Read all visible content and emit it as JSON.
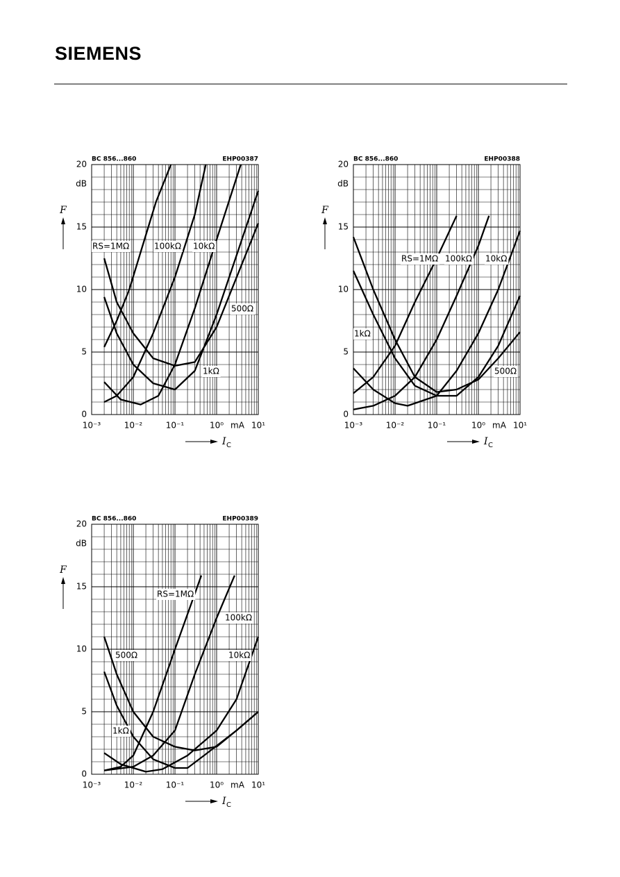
{
  "header": {
    "logo": "SIEMENS"
  },
  "chart_data": [
    {
      "type": "line",
      "code": "BC 856...860",
      "figure_id": "EHP00387",
      "ylabel": "F",
      "y_unit": "dB",
      "xlabel": "I",
      "xlabel_sub": "C",
      "x_unit": "mA",
      "xscale": "log",
      "grid": true,
      "xlim": [
        0.001,
        10
      ],
      "ylim": [
        0,
        20
      ],
      "xticks": [
        {
          "value": 0.001,
          "label": "10⁻³"
        },
        {
          "value": 0.01,
          "label": "10⁻²"
        },
        {
          "value": 0.1,
          "label": "10⁻¹"
        },
        {
          "value": 1,
          "label": "10⁰"
        },
        {
          "value": 10,
          "label": "10¹"
        }
      ],
      "yticks": [
        0,
        5,
        10,
        15,
        20
      ],
      "series": [
        {
          "name": "RS=1MΩ",
          "color": "#000000",
          "x": [
            0.002,
            0.004,
            0.008,
            0.015,
            0.035,
            0.08
          ],
          "values": [
            5.4,
            7.5,
            10,
            13,
            17,
            20
          ]
        },
        {
          "name": "100kΩ",
          "color": "#000000",
          "x": [
            0.002,
            0.004,
            0.01,
            0.03,
            0.1,
            0.3,
            0.55
          ],
          "values": [
            1.0,
            1.5,
            3,
            6.5,
            11,
            16,
            20
          ]
        },
        {
          "name": "10kΩ",
          "color": "#000000",
          "x": [
            0.002,
            0.005,
            0.015,
            0.04,
            0.1,
            0.3,
            1,
            3.8
          ],
          "values": [
            2.6,
            1.2,
            0.8,
            1.5,
            4,
            8.5,
            14,
            20
          ]
        },
        {
          "name": "500Ω",
          "color": "#000000",
          "x": [
            0.002,
            0.004,
            0.01,
            0.03,
            0.1,
            0.3,
            1,
            10
          ],
          "values": [
            9.4,
            6.5,
            4,
            2.5,
            2,
            3.5,
            8,
            17.9
          ]
        },
        {
          "name": "1kΩ",
          "color": "#000000",
          "x": [
            0.002,
            0.004,
            0.01,
            0.03,
            0.1,
            0.3,
            1,
            10
          ],
          "values": [
            12.5,
            9,
            6.5,
            4.5,
            3.9,
            4.2,
            7,
            15.3
          ]
        }
      ]
    },
    {
      "type": "line",
      "code": "BC 856...860",
      "figure_id": "EHP00388",
      "ylabel": "F",
      "y_unit": "dB",
      "xlabel": "I",
      "xlabel_sub": "C",
      "x_unit": "mA",
      "xscale": "log",
      "grid": true,
      "xlim": [
        0.001,
        10
      ],
      "ylim": [
        0,
        20
      ],
      "xticks": [
        {
          "value": 0.001,
          "label": "10⁻³"
        },
        {
          "value": 0.01,
          "label": "10⁻²"
        },
        {
          "value": 0.1,
          "label": "10⁻¹"
        },
        {
          "value": 1,
          "label": "10⁰"
        },
        {
          "value": 10,
          "label": "10¹"
        }
      ],
      "yticks": [
        0,
        5,
        10,
        15,
        20
      ],
      "series": [
        {
          "name": "RS=1MΩ",
          "color": "#000000",
          "x": [
            0.001,
            0.003,
            0.01,
            0.03,
            0.1,
            0.3
          ],
          "values": [
            1.7,
            3,
            5.5,
            9,
            12.5,
            15.9
          ]
        },
        {
          "name": "100kΩ",
          "color": "#000000",
          "x": [
            0.001,
            0.003,
            0.01,
            0.03,
            0.1,
            0.3,
            1,
            1.8
          ],
          "values": [
            0.4,
            0.7,
            1.5,
            3,
            6,
            9.5,
            13.5,
            15.9
          ]
        },
        {
          "name": "10kΩ",
          "color": "#000000",
          "x": [
            0.001,
            0.003,
            0.01,
            0.02,
            0.1,
            0.3,
            1,
            3,
            10
          ],
          "values": [
            3.7,
            2,
            0.9,
            0.7,
            1.5,
            3.5,
            6.5,
            10,
            14.7
          ]
        },
        {
          "name": "1kΩ",
          "color": "#000000",
          "x": [
            0.001,
            0.003,
            0.01,
            0.03,
            0.1,
            0.3,
            1,
            3,
            10
          ],
          "values": [
            11.5,
            8,
            4.5,
            2.3,
            1.5,
            1.5,
            3,
            5.5,
            9.5
          ]
        },
        {
          "name": "500Ω",
          "color": "#000000",
          "x": [
            0.001,
            0.003,
            0.01,
            0.03,
            0.1,
            0.3,
            1,
            3,
            10
          ],
          "values": [
            14.2,
            10,
            6,
            3,
            1.8,
            2,
            2.8,
            4.5,
            6.6
          ]
        }
      ]
    },
    {
      "type": "line",
      "code": "BC 856...860",
      "figure_id": "EHP00389",
      "ylabel": "F",
      "y_unit": "dB",
      "xlabel": "I",
      "xlabel_sub": "C",
      "x_unit": "mA",
      "xscale": "log",
      "grid": true,
      "xlim": [
        0.001,
        10
      ],
      "ylim": [
        0,
        20
      ],
      "xticks": [
        {
          "value": 0.001,
          "label": "10⁻³"
        },
        {
          "value": 0.01,
          "label": "10⁻²"
        },
        {
          "value": 0.1,
          "label": "10⁻¹"
        },
        {
          "value": 1,
          "label": "10⁰"
        },
        {
          "value": 10,
          "label": "10¹"
        }
      ],
      "yticks": [
        0,
        5,
        10,
        15,
        20
      ],
      "series": [
        {
          "name": "RS=1MΩ",
          "color": "#000000",
          "x": [
            0.002,
            0.005,
            0.01,
            0.03,
            0.1,
            0.43
          ],
          "values": [
            0.3,
            0.6,
            1.5,
            5,
            10,
            15.9
          ]
        },
        {
          "name": "100kΩ",
          "color": "#000000",
          "x": [
            0.002,
            0.01,
            0.03,
            0.1,
            0.3,
            1,
            2.7
          ],
          "values": [
            0.3,
            0.6,
            1.5,
            3.5,
            8,
            12.5,
            15.9
          ]
        },
        {
          "name": "10kΩ",
          "color": "#000000",
          "x": [
            0.002,
            0.005,
            0.02,
            0.05,
            0.2,
            1,
            3,
            10
          ],
          "values": [
            1.7,
            0.8,
            0.2,
            0.4,
            1.5,
            3.5,
            6,
            11
          ]
        },
        {
          "name": "500Ω",
          "color": "#000000",
          "x": [
            0.002,
            0.004,
            0.01,
            0.03,
            0.1,
            0.3,
            1,
            3,
            10
          ],
          "values": [
            11,
            8,
            5,
            3,
            2.2,
            1.9,
            2.2,
            3.5,
            5
          ]
        },
        {
          "name": "1kΩ",
          "color": "#000000",
          "x": [
            0.002,
            0.004,
            0.01,
            0.03,
            0.1,
            0.2,
            0.5,
            3,
            10
          ],
          "values": [
            8.2,
            5.5,
            3,
            1.2,
            0.5,
            0.5,
            1.5,
            3.5,
            5
          ]
        }
      ]
    }
  ]
}
